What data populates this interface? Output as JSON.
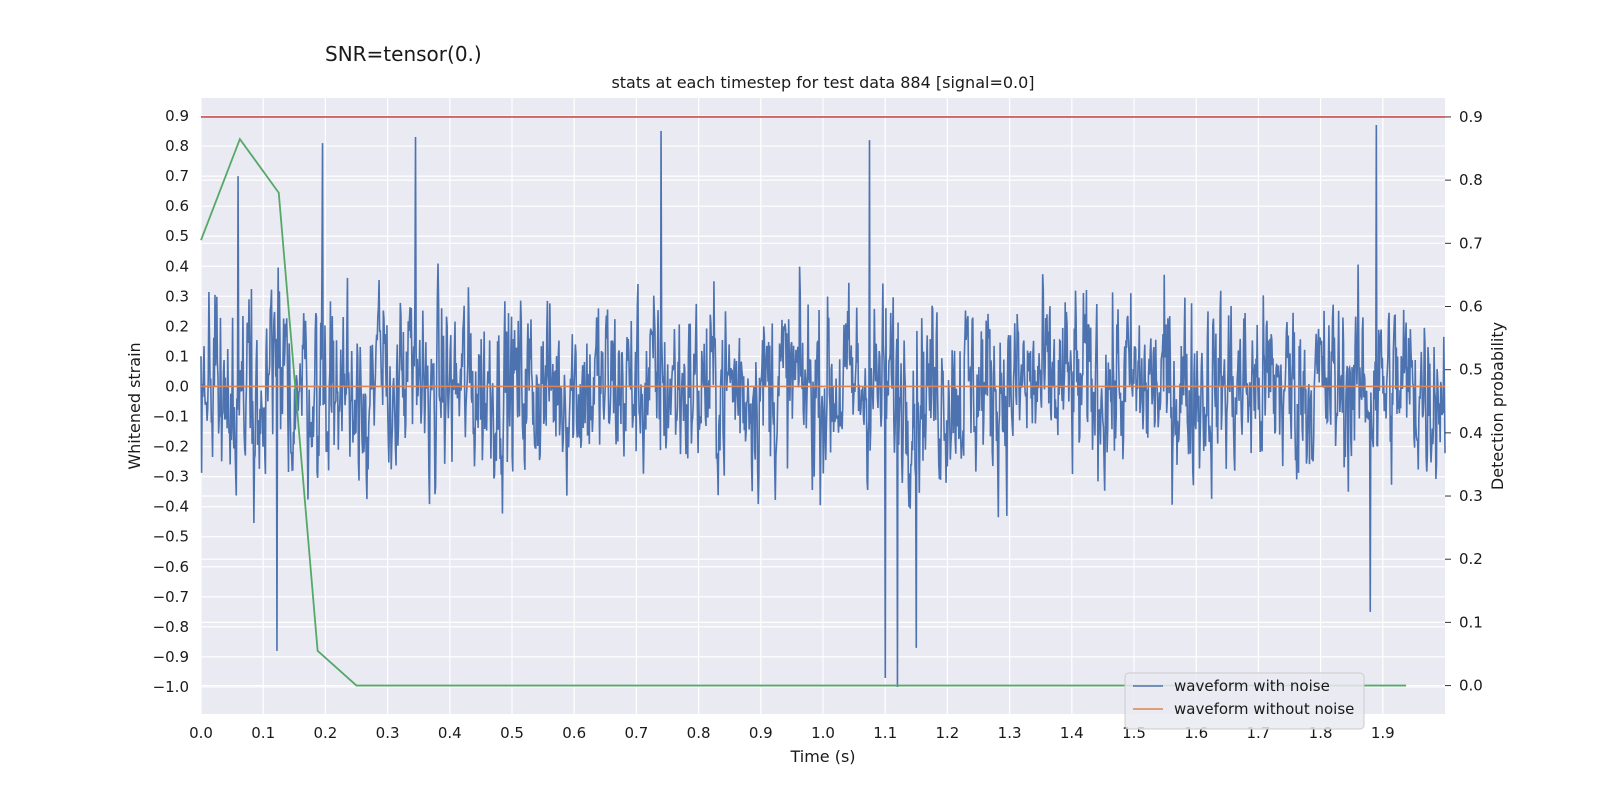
{
  "suptitle": "SNR=tensor(0.)",
  "chart_data": {
    "type": "line",
    "title": "stats at each timestep for test data 884 [signal=0.0]",
    "xlabel": "Time (s)",
    "ylabel": "Whitened strain",
    "ylabel_right": "Detection probability",
    "xlim": [
      0.0,
      2.0
    ],
    "ylim": [
      -1.09,
      0.96
    ],
    "ylim_right": [
      -0.045,
      0.93
    ],
    "grid": true,
    "x_ticks": [
      "0.0",
      "0.1",
      "0.2",
      "0.3",
      "0.4",
      "0.5",
      "0.6",
      "0.7",
      "0.8",
      "0.9",
      "1.0",
      "1.1",
      "1.2",
      "1.3",
      "1.4",
      "1.5",
      "1.6",
      "1.7",
      "1.8",
      "1.9"
    ],
    "y_ticks": [
      "0.9",
      "0.8",
      "0.7",
      "0.6",
      "0.5",
      "0.4",
      "0.3",
      "0.2",
      "0.1",
      "0.0",
      "−0.1",
      "−0.2",
      "−0.3",
      "−0.4",
      "−0.5",
      "−0.6",
      "−0.7",
      "−0.8",
      "−0.9",
      "−1.0"
    ],
    "y_ticks_right": [
      "0.9",
      "0.8",
      "0.7",
      "0.6",
      "0.5",
      "0.4",
      "0.3",
      "0.2",
      "0.1",
      "0.0"
    ],
    "legend_position": "lower-right",
    "series": [
      {
        "name": "waveform with noise",
        "color": "#4c72b0",
        "axis": "left",
        "description": "dense noise, roughly within -0.6..0.7, extrema near -1.0 and 0.87",
        "samples": 2048,
        "x_range": [
          0.0,
          2.0
        ],
        "peaks": [
          {
            "x": 0.06,
            "y": 0.7
          },
          {
            "x": 0.122,
            "y": -0.88
          },
          {
            "x": 0.195,
            "y": 0.81
          },
          {
            "x": 0.345,
            "y": 0.83
          },
          {
            "x": 0.74,
            "y": 0.85
          },
          {
            "x": 1.075,
            "y": 0.82
          },
          {
            "x": 1.1,
            "y": -0.97
          },
          {
            "x": 1.12,
            "y": -1.0
          },
          {
            "x": 1.15,
            "y": -0.87
          },
          {
            "x": 1.89,
            "y": 0.87
          },
          {
            "x": 1.88,
            "y": -0.75
          }
        ]
      },
      {
        "name": "waveform without noise",
        "color": "#dd8452",
        "axis": "left",
        "x": [
          0.0,
          2.0
        ],
        "y": [
          0.0,
          0.0
        ]
      },
      {
        "name": "",
        "color": "#55a868",
        "axis": "right",
        "x": [
          0.0,
          0.0625,
          0.125,
          0.1875,
          0.25,
          0.3125,
          1.9375
        ],
        "y": [
          0.705,
          0.865,
          0.78,
          0.055,
          0.0,
          0.0,
          0.0
        ]
      },
      {
        "name": "",
        "color": "#c44e52",
        "axis": "right",
        "x": [
          0.0,
          2.0
        ],
        "y": [
          0.9,
          0.9
        ]
      }
    ]
  }
}
